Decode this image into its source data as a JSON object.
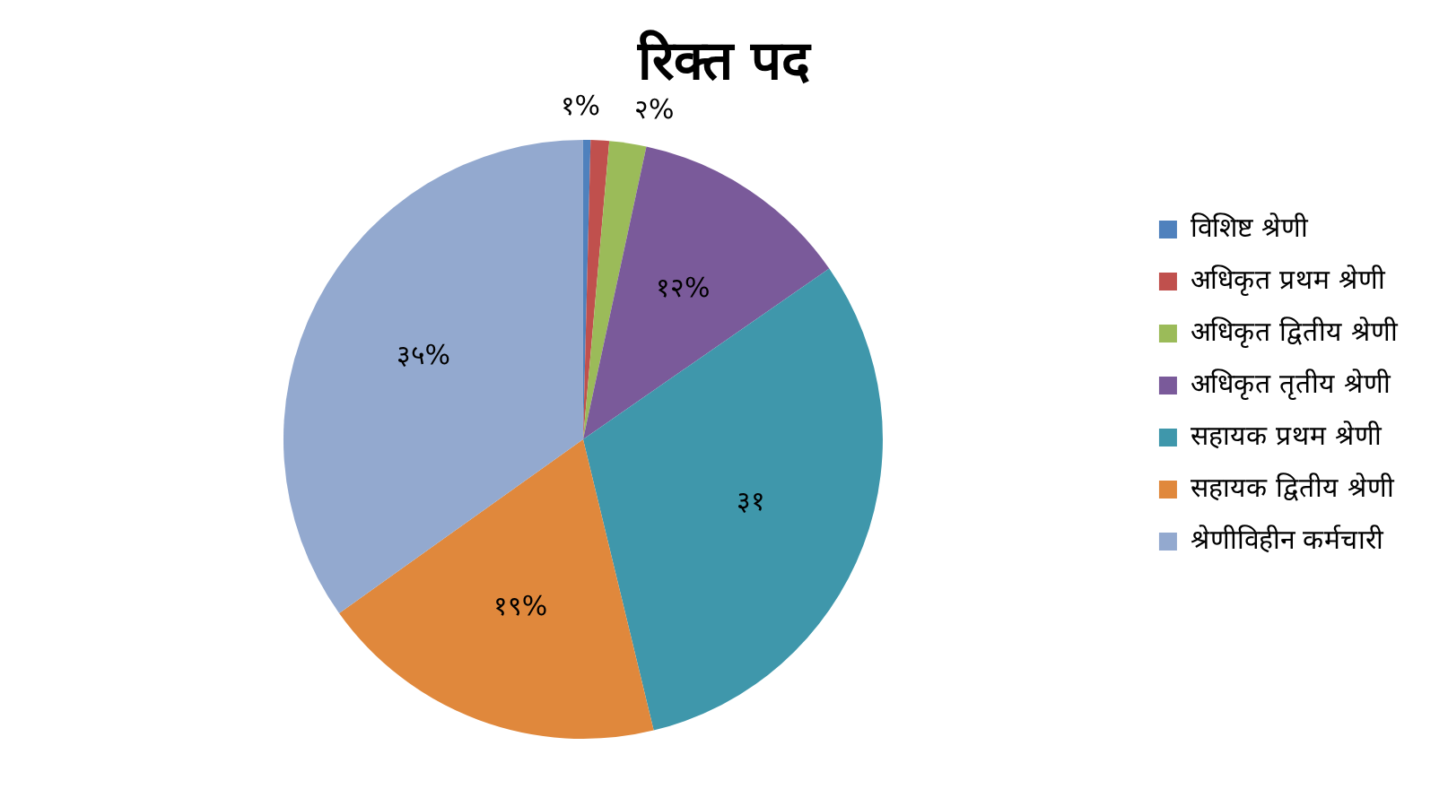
{
  "chart_data": {
    "type": "pie",
    "title": "रिक्त पद",
    "categories": [
      "विशिष्ट श्रेणी",
      "अधिकृत प्रथम श्रेणी",
      "अधिकृत द्वितीय श्रेणी",
      "अधिकृत तृतीय श्रेणी",
      "सहायक प्रथम श्रेणी",
      "सहायक द्वितीय श्रेणी",
      "श्रेणीविहीन कर्मचारी"
    ],
    "values": [
      0.4,
      1,
      2,
      12,
      31,
      19,
      35
    ],
    "value_labels": [
      null,
      "१%",
      "२%",
      "१२%",
      "३१",
      "१९%",
      "३५%"
    ],
    "colors": [
      "#4f81bd",
      "#c0504d",
      "#9bbb59",
      "#7a5a9a",
      "#3f97ab",
      "#e0883c",
      "#93a9cf"
    ],
    "legend": "right"
  }
}
